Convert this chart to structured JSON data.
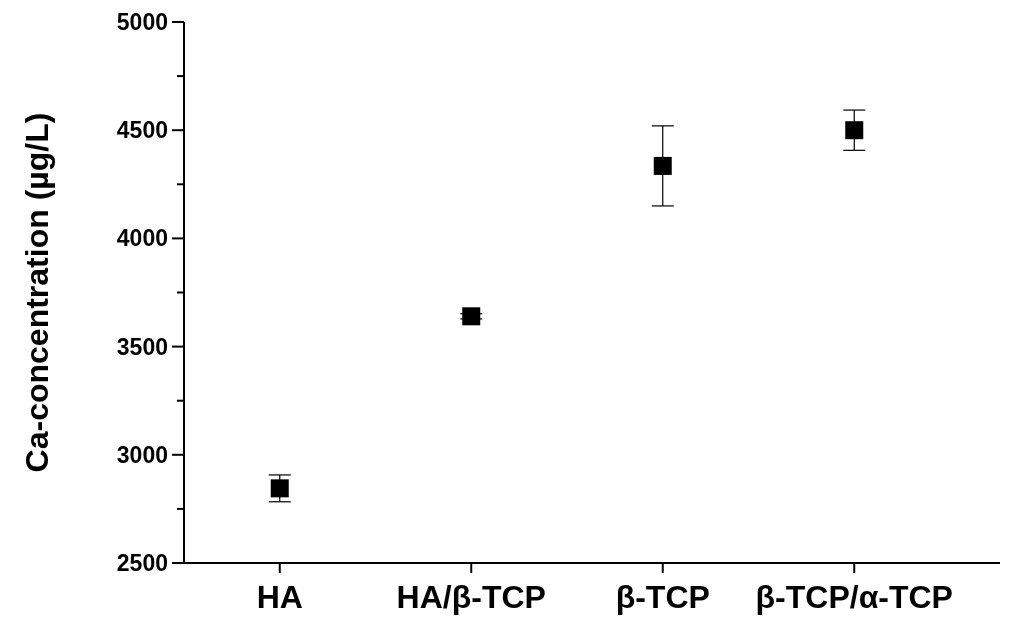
{
  "chart_data": {
    "type": "scatter",
    "ylabel": "Ca-concentration (µg/L)",
    "categories": [
      "HA",
      "HA/β-TCP",
      "β-TCP",
      "β-TCP/α-TCP"
    ],
    "series": [
      {
        "color": "#000000",
        "values": [
          2845,
          3640,
          4335,
          4500
        ],
        "errors": [
          62,
          12,
          185,
          93
        ]
      }
    ],
    "ylim": [
      2500,
      5000
    ],
    "yticks": [
      2500,
      {
        "value": 2750,
        "label": null
      },
      3000,
      {
        "value": 3250,
        "label": null
      },
      3500,
      {
        "value": 3750,
        "label": null
      },
      4000,
      {
        "value": 4250,
        "label": null
      },
      4500,
      {
        "value": 4750,
        "label": null
      },
      5000
    ],
    "marker": "square",
    "grid": false
  }
}
